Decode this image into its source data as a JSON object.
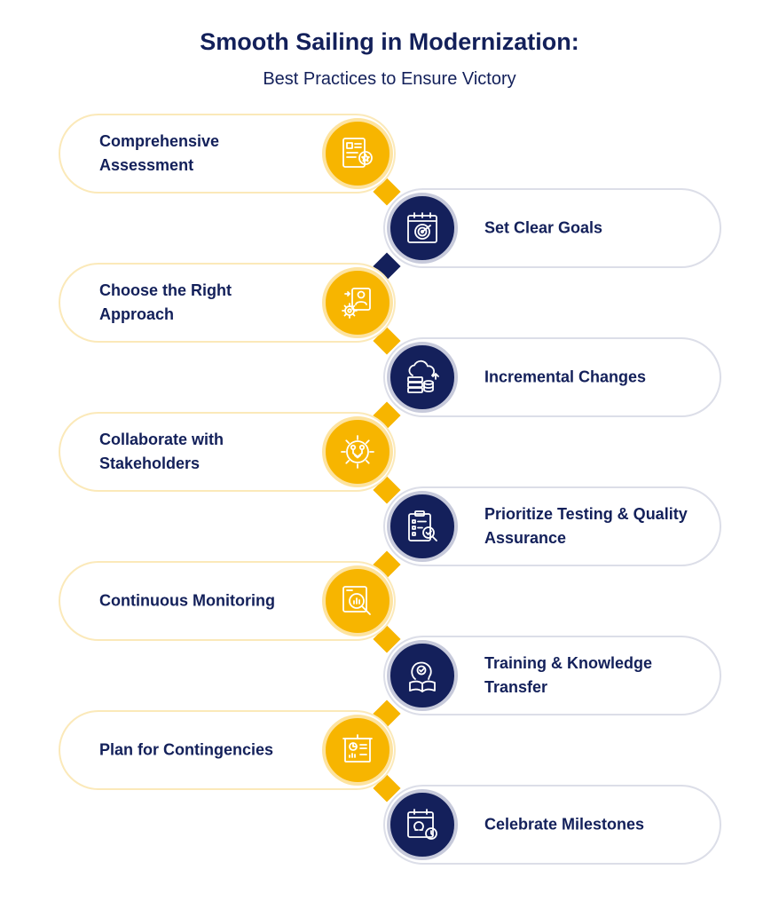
{
  "header": {
    "title": "Smooth Sailing in Modernization:",
    "subtitle": "Best Practices to Ensure Victory"
  },
  "colors": {
    "navy": "#13205a",
    "gold": "#f7b500",
    "gold_border": "#fbe9b9",
    "gray_border": "#dcdee8"
  },
  "steps": [
    {
      "label": "Comprehensive Assessment",
      "side": "left",
      "icon": "document-star-icon"
    },
    {
      "label": "Set Clear Goals",
      "side": "right",
      "icon": "target-calendar-icon"
    },
    {
      "label": "Choose the Right Approach",
      "side": "left",
      "icon": "user-gear-icon"
    },
    {
      "label": "Incremental Changes",
      "side": "right",
      "icon": "cloud-database-icon"
    },
    {
      "label": "Collaborate with Stakeholders",
      "side": "left",
      "icon": "gear-handshake-icon"
    },
    {
      "label": "Prioritize Testing & Quality Assurance",
      "side": "right",
      "icon": "clipboard-check-icon"
    },
    {
      "label": "Continuous Monitoring",
      "side": "left",
      "icon": "monitoring-magnifier-icon"
    },
    {
      "label": "Training & Knowledge Transfer",
      "side": "right",
      "icon": "head-book-icon"
    },
    {
      "label": "Plan for Contingencies",
      "side": "left",
      "icon": "presentation-board-icon"
    },
    {
      "label": "Celebrate Milestones",
      "side": "right",
      "icon": "calendar-clock-icon"
    }
  ]
}
